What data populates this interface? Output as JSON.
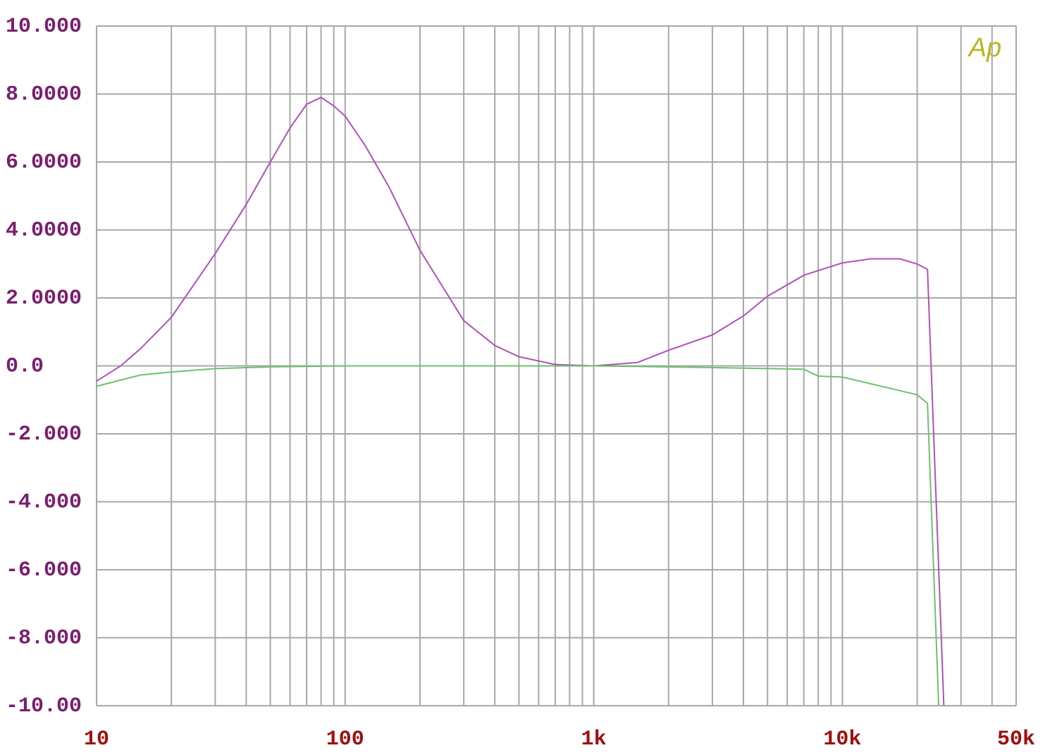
{
  "chart_data": {
    "type": "line",
    "logo": "Ap",
    "xscale": "log",
    "grid": true,
    "xlim": [
      10,
      50000
    ],
    "xticks": [
      10,
      100,
      {
        "value": 1000,
        "label": "1k"
      },
      {
        "value": 10000,
        "label": "10k"
      },
      {
        "value": 50000,
        "label": "50k"
      }
    ],
    "ylim": [
      -10,
      10
    ],
    "yticks": [
      {
        "value": 10,
        "label": "10.000"
      },
      {
        "value": 8,
        "label": "8.0000"
      },
      {
        "value": 6,
        "label": "6.0000"
      },
      {
        "value": 4,
        "label": "4.0000"
      },
      {
        "value": 2,
        "label": "2.0000"
      },
      {
        "value": 0,
        "label": "0.0"
      },
      {
        "value": -2,
        "label": "-2.000"
      },
      {
        "value": -4,
        "label": "-4.000"
      },
      {
        "value": -6,
        "label": "-6.000"
      },
      {
        "value": -8,
        "label": "-8.000"
      },
      {
        "value": -10,
        "label": "-10.00"
      }
    ],
    "series": [
      {
        "color": "#b050b8",
        "x": [
          10,
          12.5,
          15,
          20,
          30,
          40,
          50,
          60,
          70,
          80,
          90,
          100,
          120,
          150,
          200,
          300,
          400,
          500,
          700,
          1000,
          1500,
          2000,
          3000,
          4000,
          5000,
          7000,
          10000,
          13000,
          17000,
          20000,
          22000,
          25600
        ],
        "values": [
          -0.45,
          0,
          0.5,
          1.43,
          3.3,
          4.75,
          6.0,
          7.0,
          7.7,
          7.9,
          7.65,
          7.35,
          6.5,
          5.27,
          3.4,
          1.33,
          0.6,
          0.27,
          0.04,
          0,
          0.1,
          0.46,
          0.91,
          1.47,
          2.05,
          2.67,
          3.03,
          3.15,
          3.15,
          3.0,
          2.84,
          -10
        ]
      },
      {
        "color": "#70c070",
        "x": [
          10,
          15,
          20,
          30,
          50,
          100,
          1000,
          3000,
          7000,
          8000,
          10000,
          20000,
          22000,
          24400
        ],
        "values": [
          -0.6,
          -0.27,
          -0.18,
          -0.08,
          -0.03,
          0,
          0,
          -0.05,
          -0.1,
          -0.3,
          -0.33,
          -0.85,
          -1.1,
          -10
        ]
      }
    ]
  }
}
